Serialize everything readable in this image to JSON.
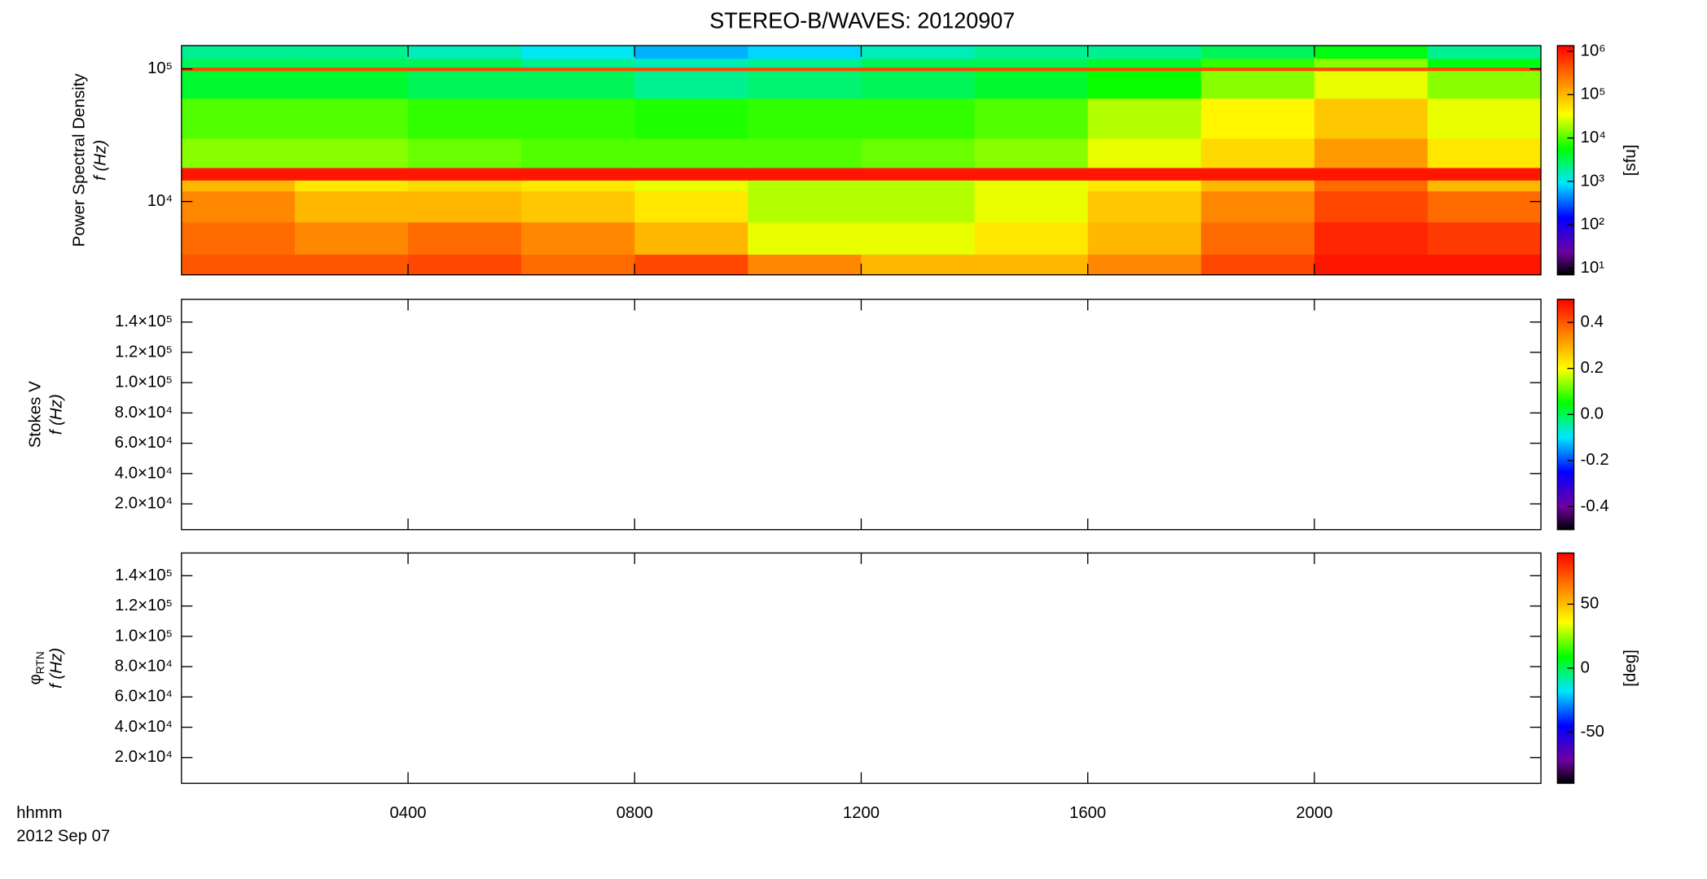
{
  "chart_data": [
    {
      "type": "heatmap",
      "title": "STEREO-B/WAVES: 20120907",
      "ylabel": "Power Spectral Density",
      "ylabel2": "f (Hz)",
      "yscale": "log",
      "ylim": [
        2800,
        150000
      ],
      "yticks": [
        {
          "value": 10000,
          "label": "10⁴"
        },
        {
          "value": 100000,
          "label": "10⁵"
        }
      ],
      "xlim": [
        0,
        24
      ],
      "xticks": [
        4,
        8,
        12,
        16,
        20
      ],
      "xbins": [
        0,
        2,
        4,
        6,
        8,
        10,
        12,
        14,
        16,
        18,
        20,
        22,
        24
      ],
      "ybins": [
        2800,
        4000,
        7000,
        12000,
        14500,
        18000,
        30000,
        60000,
        97000,
        103000,
        120000,
        150000
      ],
      "z": [
        [
          400000,
          400000,
          500000,
          300000,
          500000,
          200000,
          100000,
          100000,
          200000,
          500000,
          1000000,
          1000000
        ],
        [
          300000,
          200000,
          300000,
          200000,
          100000,
          30000,
          30000,
          50000,
          100000,
          300000,
          800000,
          600000
        ],
        [
          200000,
          100000,
          100000,
          80000,
          50000,
          20000,
          20000,
          30000,
          80000,
          200000,
          500000,
          300000
        ],
        [
          100000,
          50000,
          60000,
          50000,
          30000,
          20000,
          20000,
          30000,
          50000,
          100000,
          300000,
          100000
        ],
        [
          1000000,
          1000000,
          1000000,
          1000000,
          1000000,
          1000000,
          1000000,
          1000000,
          1000000,
          1000000,
          1000000,
          1000000
        ],
        [
          15000,
          15000,
          12000,
          10000,
          10000,
          10000,
          12000,
          15000,
          30000,
          60000,
          150000,
          50000
        ],
        [
          10000,
          10000,
          8000,
          8000,
          7000,
          8000,
          8000,
          10000,
          20000,
          40000,
          80000,
          30000
        ],
        [
          4000,
          4000,
          3000,
          3000,
          2000,
          2500,
          3000,
          4000,
          6000,
          15000,
          30000,
          15000
        ],
        [
          500000,
          500000,
          500000,
          500000,
          500000,
          500000,
          500000,
          500000,
          500000,
          500000,
          500000,
          500000
        ],
        [
          3000,
          3000,
          3000,
          2000,
          1500,
          2000,
          3000,
          3000,
          4000,
          8000,
          15000,
          5000
        ],
        [
          2000,
          2000,
          1500,
          1000,
          600,
          800,
          1500,
          2000,
          2000,
          3000,
          5000,
          2000
        ]
      ],
      "zscale": "log",
      "zlim": [
        7,
        1350000
      ],
      "zticks": [
        {
          "value": 10,
          "label": "10¹"
        },
        {
          "value": 100,
          "label": "10²"
        },
        {
          "value": 1000,
          "label": "10³"
        },
        {
          "value": 10000,
          "label": "10⁴"
        },
        {
          "value": 100000,
          "label": "10⁵"
        },
        {
          "value": 1000000,
          "label": "10⁶"
        }
      ],
      "zlabel": "[sfu]"
    },
    {
      "type": "heatmap",
      "ylabel": "Stokes V",
      "ylabel2": "f (Hz)",
      "yscale": "linear",
      "ylim": [
        3000,
        155000
      ],
      "yticks": [
        {
          "value": 20000,
          "label": "2.0×10⁴"
        },
        {
          "value": 40000,
          "label": "4.0×10⁴"
        },
        {
          "value": 60000,
          "label": "6.0×10⁴"
        },
        {
          "value": 80000,
          "label": "8.0×10⁴"
        },
        {
          "value": 100000,
          "label": "1.0×10⁵"
        },
        {
          "value": 120000,
          "label": "1.2×10⁵"
        },
        {
          "value": 140000,
          "label": "1.4×10⁵"
        }
      ],
      "xlim": [
        0,
        24
      ],
      "xticks": [
        4,
        8,
        12,
        16,
        20
      ],
      "zscale": "linear",
      "zlim": [
        -0.5,
        0.5
      ],
      "zticks": [
        -0.4,
        -0.2,
        {
          "value": 0,
          "label": "0.0"
        },
        0.2,
        0.4
      ]
    },
    {
      "type": "heatmap",
      "ylabel": "φ",
      "ylabel_sub": "RTN",
      "ylabel2": "f (Hz)",
      "yscale": "linear",
      "ylim": [
        3000,
        155000
      ],
      "yticks": [
        {
          "value": 20000,
          "label": "2.0×10⁴"
        },
        {
          "value": 40000,
          "label": "4.0×10⁴"
        },
        {
          "value": 60000,
          "label": "6.0×10⁴"
        },
        {
          "value": 80000,
          "label": "8.0×10⁴"
        },
        {
          "value": 100000,
          "label": "1.0×10⁵"
        },
        {
          "value": 120000,
          "label": "1.2×10⁵"
        },
        {
          "value": 140000,
          "label": "1.4×10⁵"
        }
      ],
      "xlim": [
        0,
        24
      ],
      "xticks": [
        {
          "value": 4,
          "label": "0400"
        },
        {
          "value": 8,
          "label": "0800"
        },
        {
          "value": 12,
          "label": "1200"
        },
        {
          "value": 16,
          "label": "1600"
        },
        {
          "value": 20,
          "label": "2000"
        }
      ],
      "xlabel": "hhmm",
      "date": "2012 Sep 07",
      "zscale": "linear",
      "zlim": [
        -90,
        90
      ],
      "zticks": [
        -50,
        0,
        50
      ],
      "zlabel": "[deg]"
    }
  ]
}
